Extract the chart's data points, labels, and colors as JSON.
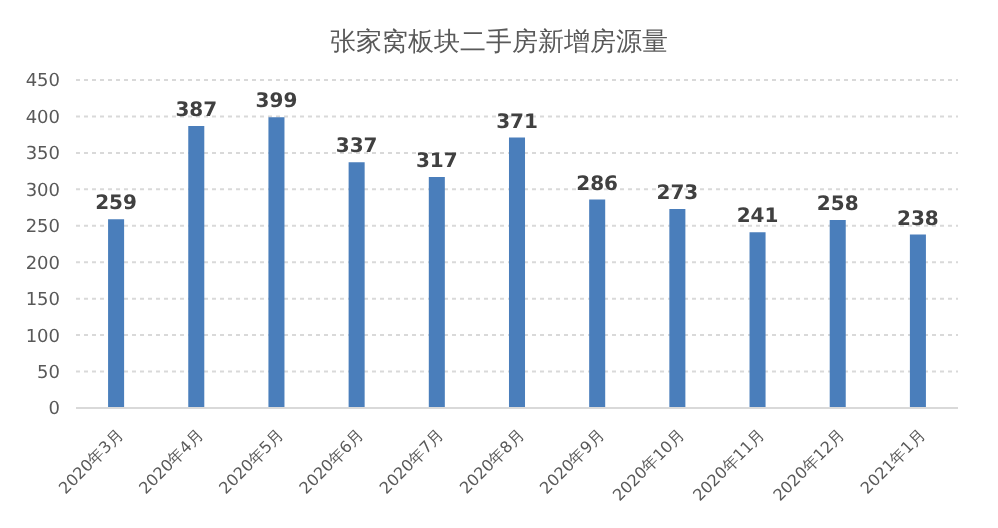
{
  "chart_data": {
    "type": "bar",
    "title": "张家窝板块二手房新增房源量",
    "categories": [
      "2020年3月",
      "2020年4月",
      "2020年5月",
      "2020年6月",
      "2020年7月",
      "2020年8月",
      "2020年9月",
      "2020年10月",
      "2020年11月",
      "2020年12月",
      "2021年1月"
    ],
    "values": [
      259,
      387,
      399,
      337,
      317,
      371,
      286,
      273,
      241,
      258,
      238
    ],
    "color": "#4a7ebb",
    "ylim": [
      0,
      450
    ],
    "yticks": [
      0,
      50,
      100,
      150,
      200,
      250,
      300,
      350,
      400,
      450
    ],
    "grid": "y",
    "data_labels": true
  }
}
